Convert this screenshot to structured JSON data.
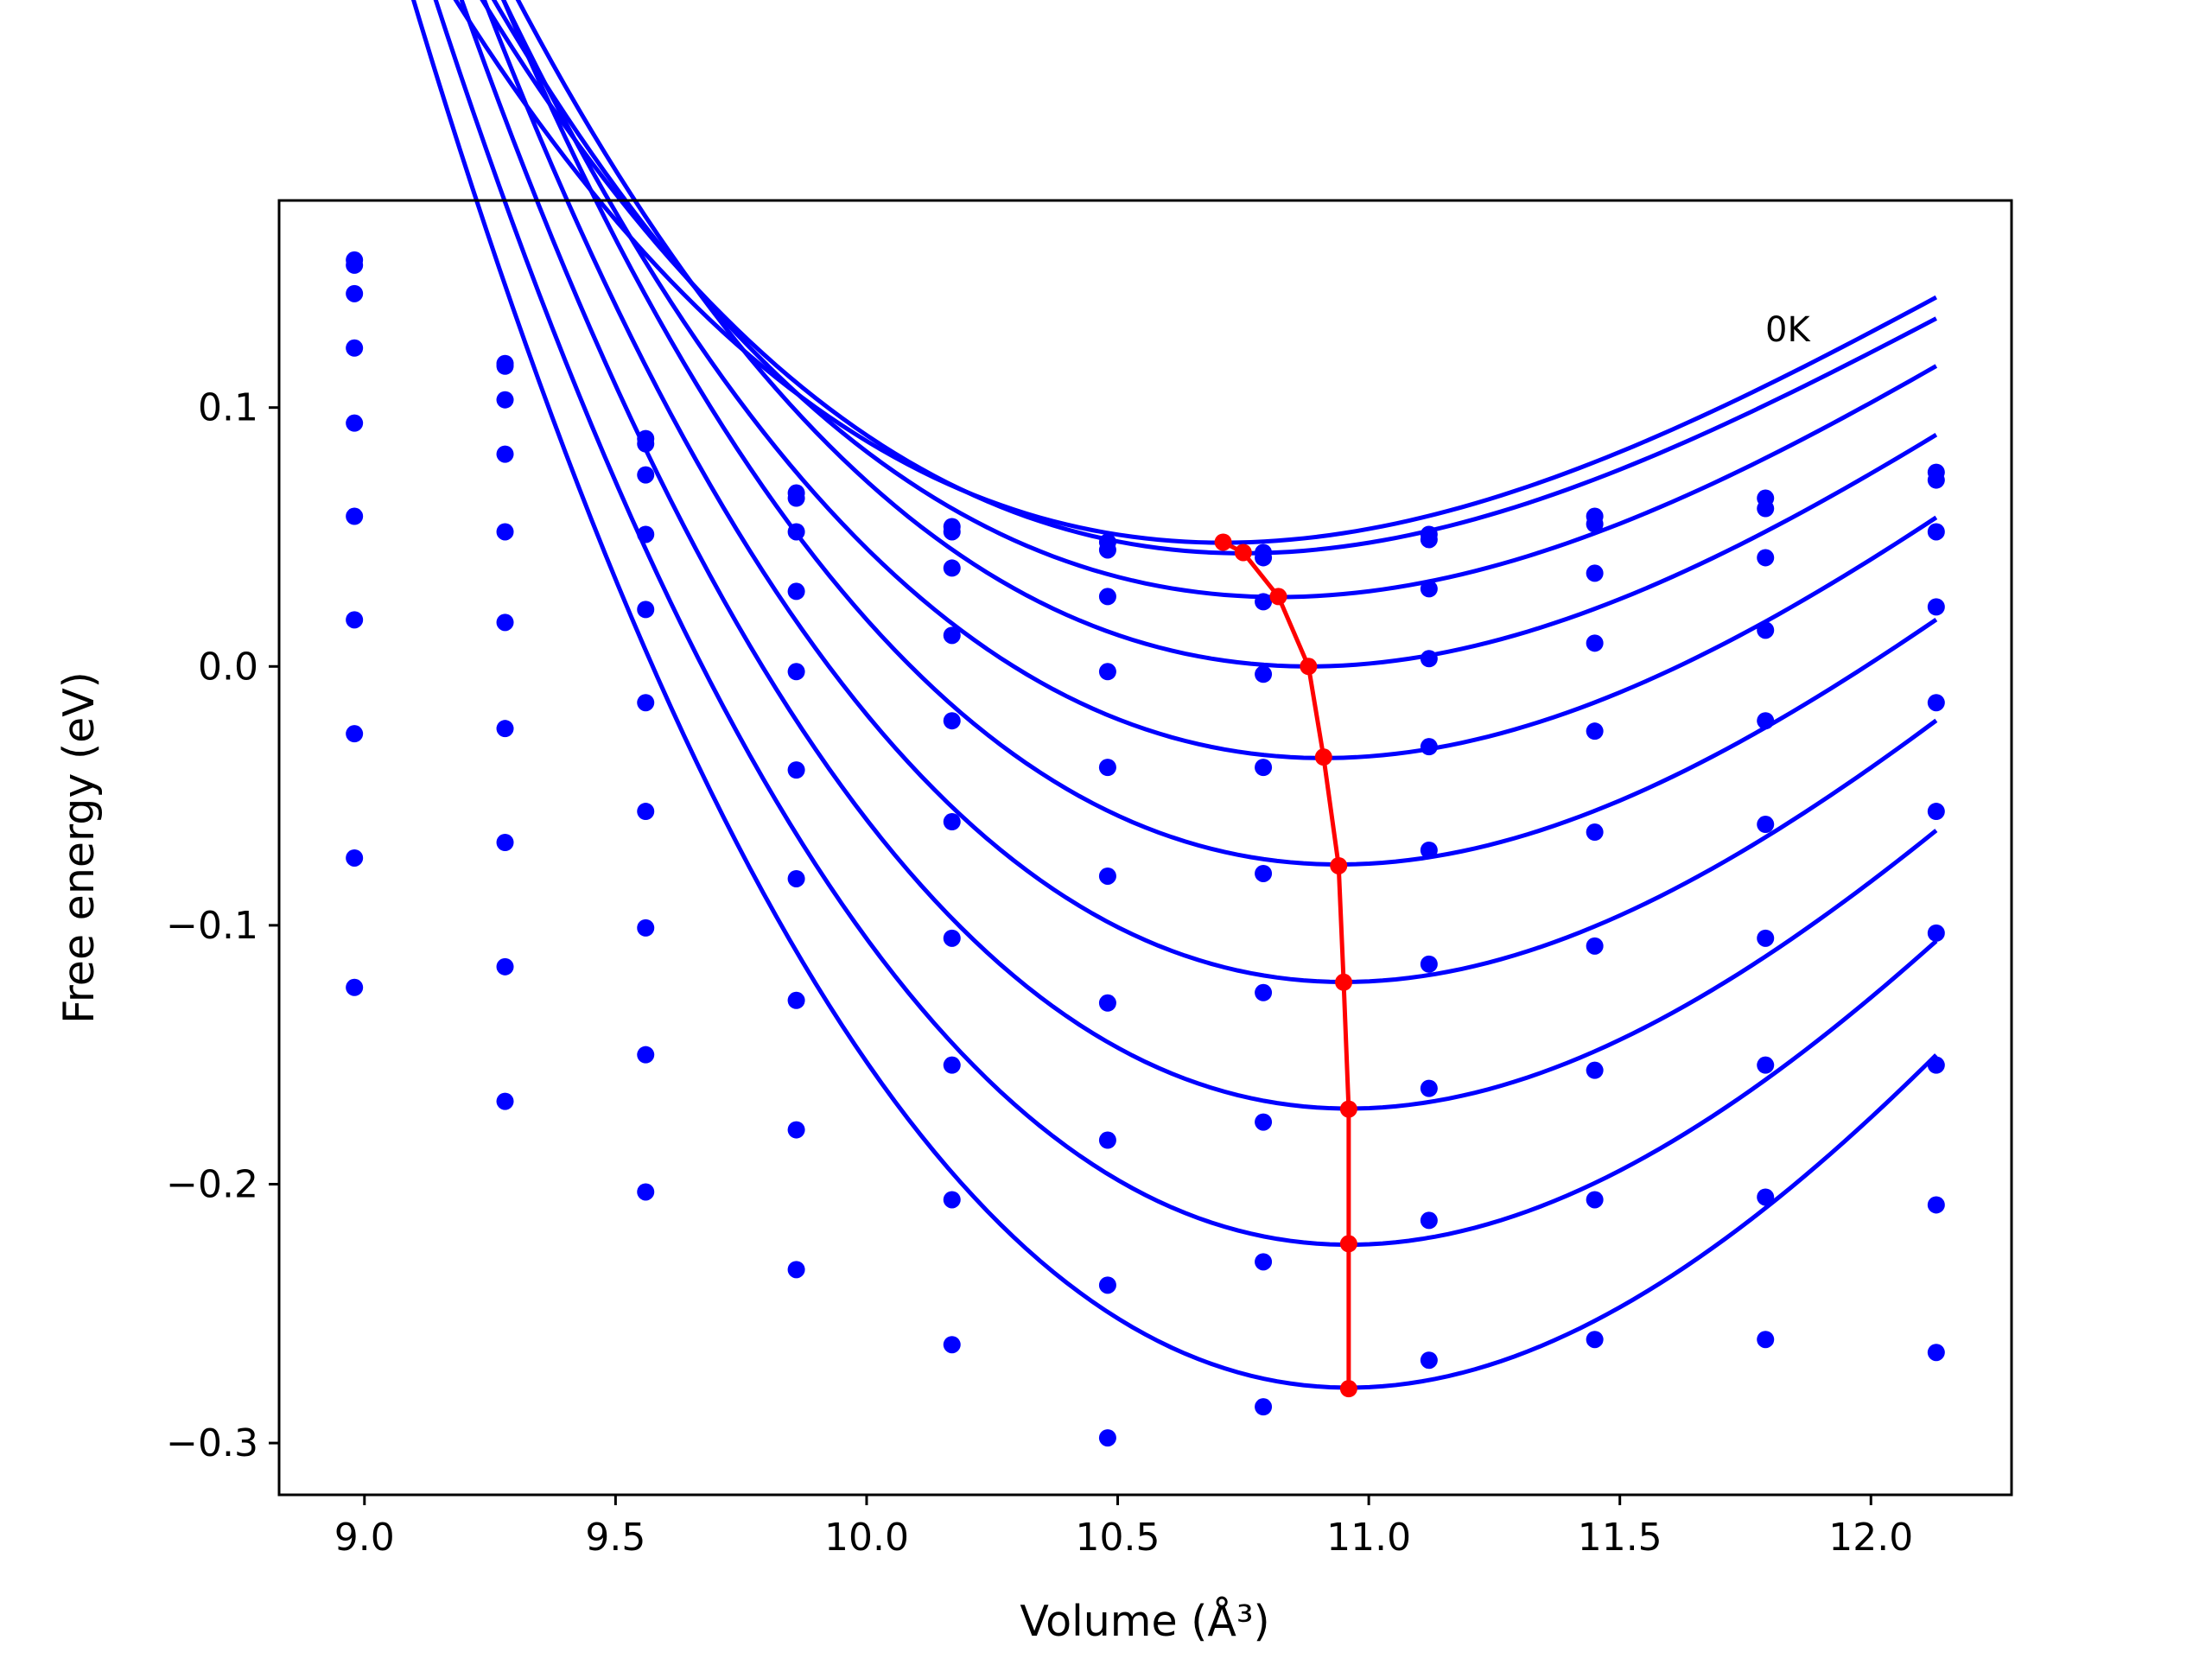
{
  "chart_data": {
    "type": "line",
    "xlabel": "Volume (Å³)",
    "ylabel": "Free energy (eV)",
    "annotation": "0K",
    "xlim": [
      8.83,
      12.28
    ],
    "ylim": [
      -0.32,
      0.18
    ],
    "xticks": [
      9.0,
      9.5,
      10.0,
      10.5,
      11.0,
      11.5,
      12.0
    ],
    "xtick_labels": [
      "9.0",
      "9.5",
      "10.0",
      "10.5",
      "11.0",
      "11.5",
      "12.0"
    ],
    "yticks": [
      -0.3,
      -0.2,
      -0.1,
      0.0,
      0.1
    ],
    "ytick_labels": [
      "−0.3",
      "−0.2",
      "−0.1",
      "0.0",
      "0.1"
    ],
    "colors": {
      "series": "#0000ff",
      "minimum_path": "#ff0000"
    },
    "x": [
      8.98,
      9.28,
      9.56,
      9.86,
      10.17,
      10.48,
      10.79,
      11.12,
      11.45,
      11.79,
      12.13
    ],
    "series": [
      {
        "values": [
          0.157,
          0.117,
          0.088,
          0.067,
          0.054,
          0.048,
          0.044,
          0.051,
          0.058,
          0.065,
          0.075
        ],
        "fit": {
          "vmin": 10.71,
          "emin": 0.0478,
          "a": 0.0676,
          "b": 0.0145
        }
      },
      {
        "values": [
          0.155,
          0.116,
          0.086,
          0.065,
          0.052,
          0.045,
          0.042,
          0.049,
          0.055,
          0.061,
          0.072
        ],
        "fit": {
          "vmin": 10.75,
          "emin": 0.0437,
          "a": 0.0693,
          "b": 0.0157
        }
      },
      {
        "values": [
          0.144,
          0.103,
          0.074,
          0.052,
          0.038,
          0.027,
          0.025,
          0.03,
          0.036,
          0.042,
          0.052
        ],
        "fit": {
          "vmin": 10.82,
          "emin": 0.0268,
          "a": 0.0714,
          "b": 0.0148
        }
      },
      {
        "values": [
          0.123,
          0.082,
          0.051,
          0.029,
          0.012,
          -0.002,
          -0.003,
          0.003,
          0.009,
          0.014,
          0.023
        ],
        "fit": {
          "vmin": 10.88,
          "emin": 0.0,
          "a": 0.0779,
          "b": 0.0165
        }
      },
      {
        "values": [
          0.094,
          0.052,
          0.022,
          -0.002,
          -0.021,
          -0.039,
          -0.039,
          -0.031,
          -0.025,
          -0.021,
          -0.014
        ],
        "fit": {
          "vmin": 10.91,
          "emin": -0.0354,
          "a": 0.0827,
          "b": 0.0166
        }
      },
      {
        "values": [
          0.058,
          0.017,
          -0.014,
          -0.04,
          -0.06,
          -0.081,
          -0.08,
          -0.071,
          -0.064,
          -0.061,
          -0.056
        ],
        "fit": {
          "vmin": 10.94,
          "emin": -0.0765,
          "a": 0.0893,
          "b": 0.0189
        }
      },
      {
        "values": [
          0.018,
          -0.024,
          -0.056,
          -0.082,
          -0.105,
          -0.13,
          -0.126,
          -0.115,
          -0.108,
          -0.105,
          -0.103
        ],
        "fit": {
          "vmin": 10.95,
          "emin": -0.1219,
          "a": 0.0958,
          "b": 0.0197
        }
      },
      {
        "values": [
          -0.026,
          -0.068,
          -0.101,
          -0.129,
          -0.154,
          -0.183,
          -0.176,
          -0.163,
          -0.156,
          -0.154,
          -0.154
        ],
        "fit": {
          "vmin": 10.96,
          "emin": -0.1708,
          "a": 0.1019,
          "b": 0.02
        }
      },
      {
        "values": [
          -0.074,
          -0.116,
          -0.15,
          -0.179,
          -0.206,
          -0.239,
          -0.23,
          -0.214,
          -0.206,
          -0.205,
          -0.208
        ],
        "fit": {
          "vmin": 10.96,
          "emin": -0.2234,
          "a": 0.1091,
          "b": 0.02
        }
      },
      {
        "values": [
          -0.124,
          -0.168,
          -0.203,
          -0.233,
          -0.262,
          -0.298,
          -0.286,
          -0.268,
          -0.26,
          -0.26,
          -0.265
        ],
        "fit": {
          "vmin": 10.96,
          "emin": -0.2786,
          "a": 0.1173,
          "b": 0.02
        }
      }
    ],
    "minimum_path": {
      "x": [
        10.71,
        10.75,
        10.82,
        10.88,
        10.91,
        10.94,
        10.95,
        10.96,
        10.96,
        10.96
      ],
      "y": [
        0.048,
        0.044,
        0.027,
        0.0,
        -0.035,
        -0.077,
        -0.122,
        -0.171,
        -0.223,
        -0.279
      ]
    }
  }
}
